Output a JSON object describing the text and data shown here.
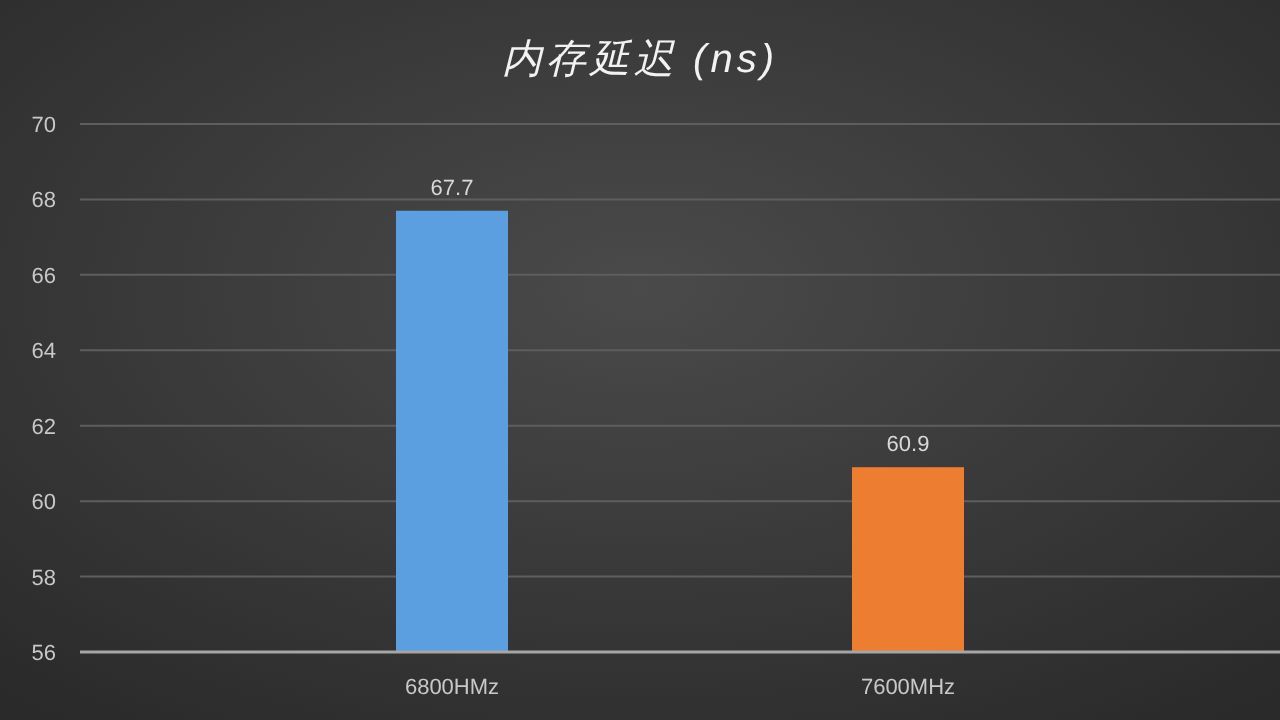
{
  "chart_data": {
    "type": "bar",
    "title": "内存延迟 (ns)",
    "categories": [
      "6800HMz",
      "7600MHz"
    ],
    "values": [
      67.7,
      60.9
    ],
    "colors": [
      "#5b9fe0",
      "#ed7d31"
    ],
    "ylim": [
      56,
      70
    ],
    "yticks": [
      56,
      58,
      60,
      62,
      64,
      66,
      68,
      70
    ],
    "grid": "y",
    "data_labels": true
  }
}
